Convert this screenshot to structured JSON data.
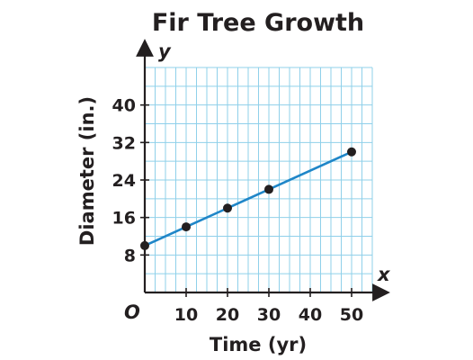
{
  "chart_data": {
    "type": "line",
    "title": "Fir Tree Growth",
    "xlabel": "Time (yr)",
    "ylabel": "Diameter (in.)",
    "x_axis_letter": "x",
    "y_axis_letter": "y",
    "origin_label": "O",
    "xlim": [
      0,
      55
    ],
    "ylim": [
      0,
      48
    ],
    "x_ticks": [
      10,
      20,
      30,
      40,
      50
    ],
    "y_ticks": [
      8,
      16,
      24,
      32,
      40
    ],
    "grid": true,
    "series": [
      {
        "points": [
          {
            "x": 0,
            "y": 10
          },
          {
            "x": 10,
            "y": 14
          },
          {
            "x": 20,
            "y": 18
          },
          {
            "x": 30,
            "y": 22
          },
          {
            "x": 50,
            "y": 30
          }
        ]
      }
    ],
    "colors": {
      "line": "#1f86c8",
      "grid": "#8fd0ea",
      "axis": "#231f20",
      "point": "#231f20"
    }
  }
}
